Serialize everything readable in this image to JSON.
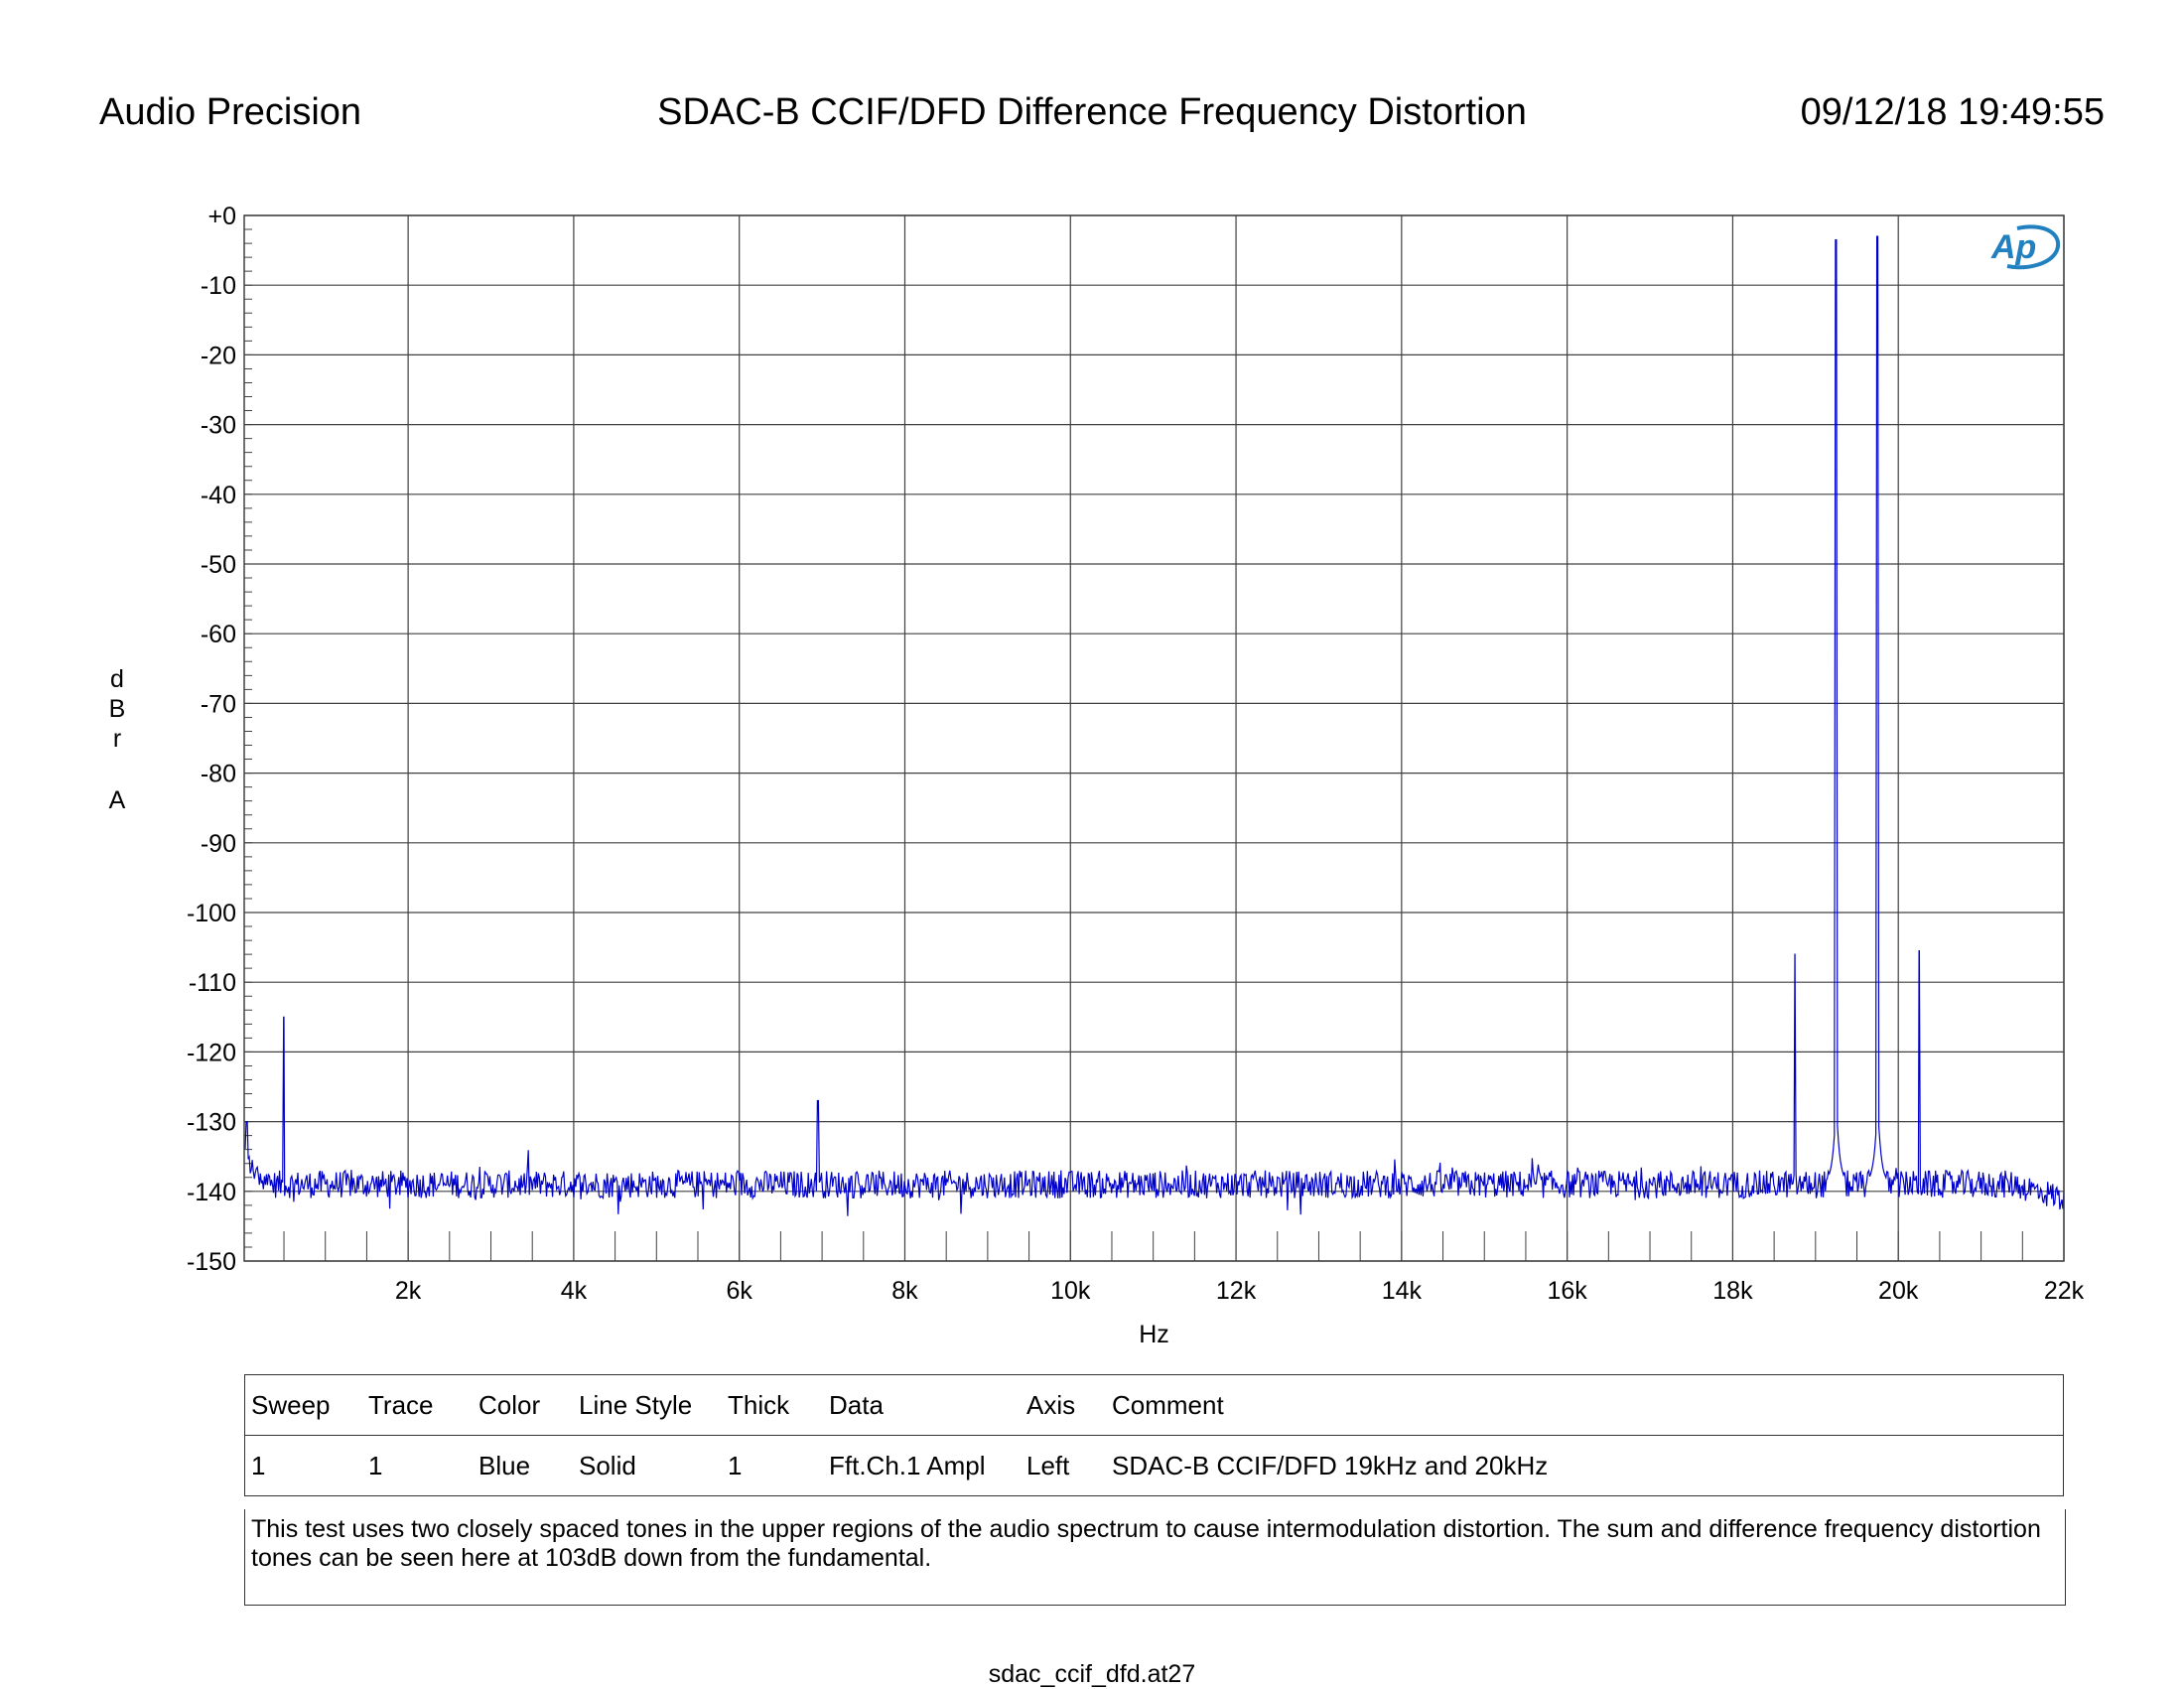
{
  "header": {
    "left": "Audio Precision",
    "title": "SDAC-B CCIF/DFD Difference Frequency Distortion",
    "datetime": "09/12/18 19:49:55"
  },
  "colors": {
    "trace": "#0000cc",
    "grid": "#404040",
    "logo": "#2080c0"
  },
  "logo_icon": "ap-logo-icon",
  "chart_data": {
    "type": "line",
    "title": "SDAC-B CCIF/DFD Difference Frequency Distortion",
    "xlabel": "Hz",
    "ylabel_chars": [
      "d",
      "B",
      "r",
      "",
      "A"
    ],
    "xlim": [
      20,
      22000
    ],
    "ylim": [
      -150,
      0
    ],
    "grid": true,
    "y_ticks": [
      0,
      -10,
      -20,
      -30,
      -40,
      -50,
      -60,
      -70,
      -80,
      -90,
      -100,
      -110,
      -120,
      -130,
      -140,
      -150
    ],
    "y_tick_labels": [
      "+0",
      "-10",
      "-20",
      "-30",
      "-40",
      "-50",
      "-60",
      "-70",
      "-80",
      "-90",
      "-100",
      "-110",
      "-120",
      "-130",
      "-140",
      "-150"
    ],
    "x_ticks": [
      2000,
      4000,
      6000,
      8000,
      10000,
      12000,
      14000,
      16000,
      18000,
      20000,
      22000
    ],
    "x_tick_labels": [
      "2k",
      "4k",
      "6k",
      "8k",
      "10k",
      "12k",
      "14k",
      "16k",
      "18k",
      "20k",
      "22k"
    ],
    "series": [
      {
        "noise_floor_db": -139,
        "peaks": [
          {
            "x": 50,
            "y": -130
          },
          {
            "x": 500,
            "y": -115
          },
          {
            "x": 6950,
            "y": -127
          },
          {
            "x": 18750,
            "y": -106
          },
          {
            "x": 19250,
            "y": -3.5
          },
          {
            "x": 19750,
            "y": -3
          },
          {
            "x": 20250,
            "y": -105.5
          }
        ]
      }
    ]
  },
  "legend": {
    "headers": [
      "Sweep",
      "Trace",
      "Color",
      "Line Style",
      "Thick",
      "Data",
      "Axis",
      "Comment"
    ],
    "row": [
      "1",
      "1",
      "Blue",
      "Solid",
      "1",
      "Fft.Ch.1 Ampl",
      "Left",
      "SDAC-B CCIF/DFD 19kHz and 20kHz"
    ],
    "note": "This test uses two closely spaced tones in the upper regions of the audio spectrum to cause intermodulation distortion.  The sum and difference frequency distortion tones can be seen here at  103dB down from the fundamental."
  },
  "footer": "sdac_ccif_dfd.at27"
}
